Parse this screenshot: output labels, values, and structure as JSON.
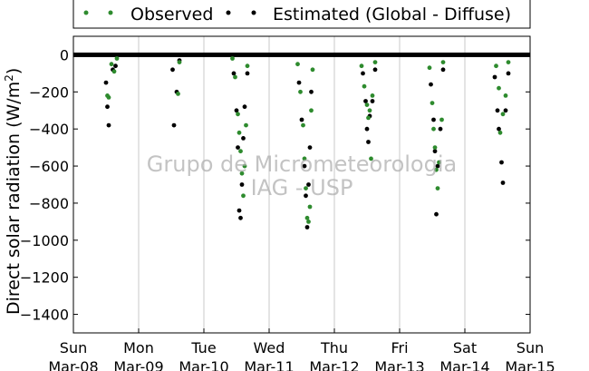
{
  "chart_data": {
    "type": "scatter",
    "ylabel": "Direct solar radiation (W/m",
    "ylabel_sup": "2",
    "ylabel_close": ")",
    "ylim": [
      -1500,
      100
    ],
    "yticks": [
      0,
      -200,
      -400,
      -600,
      -800,
      -1000,
      -1200,
      -1400
    ],
    "ytick_labels": [
      "0",
      "−200",
      "−400",
      "−600",
      "−800",
      "−1000",
      "−1200",
      "−1400"
    ],
    "xlim": [
      "2015-03-08",
      "2015-03-15"
    ],
    "xticks": [
      {
        "day": "Sun",
        "date": "Mar-08"
      },
      {
        "day": "Mon",
        "date": "Mar-09"
      },
      {
        "day": "Tue",
        "date": "Mar-10"
      },
      {
        "day": "Wed",
        "date": "Mar-11"
      },
      {
        "day": "Thu",
        "date": "Mar-12"
      },
      {
        "day": "Fri",
        "date": "Mar-13"
      },
      {
        "day": "Sat",
        "date": "Mar-14"
      },
      {
        "day": "Sun",
        "date": "Mar-15"
      }
    ],
    "grid": "vertical",
    "legend_position": "above",
    "watermark": [
      "Grupo de Micrometeorologia",
      "IAG - USP"
    ],
    "series": [
      {
        "name": "Observed",
        "color": "#2e8b2e",
        "points": [
          [
            "2015-03-08 12:30",
            -220
          ],
          [
            "2015-03-08 13:00",
            -230
          ],
          [
            "2015-03-08 14:00",
            -50
          ],
          [
            "2015-03-08 15:00",
            -90
          ],
          [
            "2015-03-08 16:00",
            -20
          ],
          [
            "2015-03-09 14:30",
            -210
          ],
          [
            "2015-03-09 15:00",
            -40
          ],
          [
            "2015-03-10 10:30",
            -20
          ],
          [
            "2015-03-10 11:30",
            -120
          ],
          [
            "2015-03-10 12:30",
            -320
          ],
          [
            "2015-03-10 13:00",
            -420
          ],
          [
            "2015-03-10 13:30",
            -520
          ],
          [
            "2015-03-10 14:00",
            -640
          ],
          [
            "2015-03-10 14:30",
            -760
          ],
          [
            "2015-03-10 15:00",
            -600
          ],
          [
            "2015-03-10 15:30",
            -380
          ],
          [
            "2015-03-10 16:00",
            -60
          ],
          [
            "2015-03-11 10:30",
            -50
          ],
          [
            "2015-03-11 11:30",
            -200
          ],
          [
            "2015-03-11 12:30",
            -380
          ],
          [
            "2015-03-11 13:00",
            -560
          ],
          [
            "2015-03-11 13:30",
            -720
          ],
          [
            "2015-03-11 14:00",
            -880
          ],
          [
            "2015-03-11 14:30",
            -900
          ],
          [
            "2015-03-11 15:00",
            -820
          ],
          [
            "2015-03-11 15:30",
            -300
          ],
          [
            "2015-03-11 16:00",
            -80
          ],
          [
            "2015-03-12 10:00",
            -60
          ],
          [
            "2015-03-12 11:00",
            -170
          ],
          [
            "2015-03-12 12:00",
            -270
          ],
          [
            "2015-03-12 12:30",
            -340
          ],
          [
            "2015-03-12 13:00",
            -300
          ],
          [
            "2015-03-12 13:30",
            -560
          ],
          [
            "2015-03-12 14:00",
            -220
          ],
          [
            "2015-03-12 15:00",
            -40
          ],
          [
            "2015-03-13 11:00",
            -70
          ],
          [
            "2015-03-13 12:00",
            -260
          ],
          [
            "2015-03-13 12:30",
            -400
          ],
          [
            "2015-03-13 13:00",
            -500
          ],
          [
            "2015-03-13 13:30",
            -620
          ],
          [
            "2015-03-13 14:00",
            -720
          ],
          [
            "2015-03-13 14:30",
            -580
          ],
          [
            "2015-03-13 15:30",
            -350
          ],
          [
            "2015-03-13 16:00",
            -40
          ],
          [
            "2015-03-14 11:30",
            -60
          ],
          [
            "2015-03-14 12:30",
            -180
          ],
          [
            "2015-03-14 13:00",
            -420
          ],
          [
            "2015-03-14 14:00",
            -320
          ],
          [
            "2015-03-14 15:00",
            -220
          ],
          [
            "2015-03-14 16:00",
            -40
          ]
        ]
      },
      {
        "name": "Estimated (Global - Diffuse)",
        "color": "#000000",
        "points": [
          [
            "2015-03-08 12:00",
            -150
          ],
          [
            "2015-03-08 12:30",
            -280
          ],
          [
            "2015-03-08 13:00",
            -380
          ],
          [
            "2015-03-08 14:30",
            -80
          ],
          [
            "2015-03-08 15:30",
            -60
          ],
          [
            "2015-03-09 12:30",
            -80
          ],
          [
            "2015-03-09 13:00",
            -380
          ],
          [
            "2015-03-09 14:00",
            -200
          ],
          [
            "2015-03-09 15:00",
            -30
          ],
          [
            "2015-03-10 11:00",
            -100
          ],
          [
            "2015-03-10 12:00",
            -300
          ],
          [
            "2015-03-10 12:30",
            -500
          ],
          [
            "2015-03-10 13:00",
            -840
          ],
          [
            "2015-03-10 13:30",
            -880
          ],
          [
            "2015-03-10 14:00",
            -700
          ],
          [
            "2015-03-10 14:30",
            -450
          ],
          [
            "2015-03-10 15:00",
            -280
          ],
          [
            "2015-03-10 16:00",
            -100
          ],
          [
            "2015-03-11 11:00",
            -150
          ],
          [
            "2015-03-11 12:00",
            -350
          ],
          [
            "2015-03-11 13:00",
            -600
          ],
          [
            "2015-03-11 13:30",
            -760
          ],
          [
            "2015-03-11 14:00",
            -930
          ],
          [
            "2015-03-11 14:30",
            -700
          ],
          [
            "2015-03-11 15:00",
            -500
          ],
          [
            "2015-03-11 15:30",
            -200
          ],
          [
            "2015-03-12 10:30",
            -100
          ],
          [
            "2015-03-12 11:30",
            -250
          ],
          [
            "2015-03-12 12:00",
            -400
          ],
          [
            "2015-03-12 12:30",
            -470
          ],
          [
            "2015-03-12 13:00",
            -330
          ],
          [
            "2015-03-12 14:00",
            -250
          ],
          [
            "2015-03-12 15:00",
            -80
          ],
          [
            "2015-03-13 11:30",
            -160
          ],
          [
            "2015-03-13 12:30",
            -350
          ],
          [
            "2015-03-13 13:00",
            -520
          ],
          [
            "2015-03-13 13:30",
            -860
          ],
          [
            "2015-03-13 14:00",
            -600
          ],
          [
            "2015-03-13 15:00",
            -400
          ],
          [
            "2015-03-13 16:00",
            -80
          ],
          [
            "2015-03-14 11:00",
            -120
          ],
          [
            "2015-03-14 12:00",
            -300
          ],
          [
            "2015-03-14 12:30",
            -400
          ],
          [
            "2015-03-14 13:30",
            -580
          ],
          [
            "2015-03-14 14:00",
            -690
          ],
          [
            "2015-03-14 15:00",
            -300
          ],
          [
            "2015-03-14 16:00",
            -100
          ]
        ]
      }
    ]
  }
}
